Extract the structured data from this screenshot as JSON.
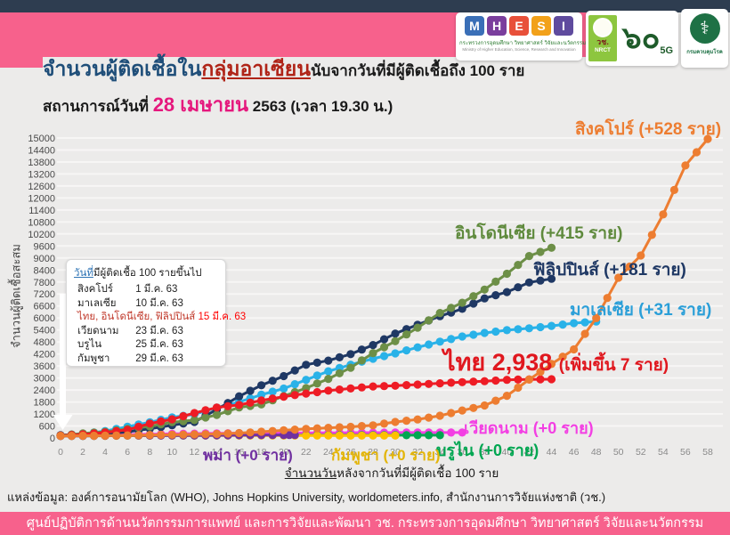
{
  "header": {
    "title_part1": "จำนวนผู้ติดเชื้อใน",
    "title_part2": "กลุ่มอาเซียน",
    "title_part3": "นับจากวันที่มีผู้ติดเชื้อถึง 100 ราย",
    "subtitle_prefix": "สถานการณ์วันที่ ",
    "subtitle_date": "28 เมษายน",
    "subtitle_suffix": " 2563  (เวลา 19.30 น.)"
  },
  "logos": {
    "mhesi": {
      "letters": [
        {
          "ch": "M",
          "color": "#3A6FB7"
        },
        {
          "ch": "H",
          "color": "#7A3E9D"
        },
        {
          "ch": "E",
          "color": "#E8503A"
        },
        {
          "ch": "S",
          "color": "#F2A11A"
        },
        {
          "ch": "I",
          "color": "#5F4B9E"
        }
      ],
      "thai": "กระทรวงการอุดมศึกษา วิทยาศาสตร์ วิจัยและนวัตกรรม",
      "eng": "Ministry of Higher Education, Science, Research and Innovation"
    },
    "nrct": {
      "abbr": "วช.",
      "eng": "NRCT",
      "sixty": "๖๐",
      "fiveg": "5G"
    },
    "ddc": {
      "symbol": "⚕",
      "name": "กรมควบคุมโรค"
    }
  },
  "chart_data": {
    "type": "line",
    "title": "จำนวนผู้ติดเชื้อในกลุ่มอาเซียน นับจากวันที่มีผู้ติดเชื้อถึง 100 ราย",
    "xlabel": "จำนวนวันหลังจากวันที่มีผู้ติดเชื้อ 100 ราย",
    "ylabel": "จำนวนผู้ติดเชื้อสะสม",
    "xlim": [
      0,
      58
    ],
    "ylim": [
      0,
      15000
    ],
    "xtick_step": 2,
    "ytick_step": 600,
    "grid": true,
    "legend_position": "inline-labels",
    "series": [
      {
        "name": "เวียดนาม",
        "color": "#F33FE3",
        "points": [
          [
            0,
            113
          ],
          [
            2,
            134
          ],
          [
            4,
            153
          ],
          [
            6,
            174
          ],
          [
            8,
            188
          ],
          [
            10,
            207
          ],
          [
            12,
            218
          ],
          [
            14,
            233
          ],
          [
            16,
            241
          ],
          [
            18,
            245
          ],
          [
            20,
            249
          ],
          [
            22,
            251
          ],
          [
            24,
            255
          ],
          [
            26,
            265
          ],
          [
            28,
            268
          ],
          [
            30,
            270
          ],
          [
            32,
            270
          ],
          [
            34,
            270
          ],
          [
            36,
            270
          ]
        ]
      },
      {
        "name": "บรูไน",
        "color": "#00A651",
        "points": [
          [
            0,
            104
          ],
          [
            2,
            109
          ],
          [
            4,
            115
          ],
          [
            6,
            120
          ],
          [
            8,
            126
          ],
          [
            10,
            129
          ],
          [
            12,
            131
          ],
          [
            14,
            133
          ],
          [
            16,
            135
          ],
          [
            18,
            136
          ],
          [
            20,
            136
          ],
          [
            22,
            137
          ],
          [
            24,
            138
          ],
          [
            26,
            138
          ],
          [
            28,
            138
          ],
          [
            30,
            138
          ],
          [
            32,
            138
          ],
          [
            34,
            138
          ]
        ]
      },
      {
        "name": "กัมพูชา",
        "color": "#FFC000",
        "points": [
          [
            0,
            103
          ],
          [
            2,
            107
          ],
          [
            4,
            109
          ],
          [
            6,
            114
          ],
          [
            8,
            117
          ],
          [
            10,
            119
          ],
          [
            12,
            122
          ],
          [
            14,
            122
          ],
          [
            16,
            122
          ],
          [
            18,
            122
          ],
          [
            20,
            122
          ],
          [
            22,
            122
          ],
          [
            24,
            122
          ],
          [
            26,
            122
          ],
          [
            28,
            122
          ],
          [
            30,
            122
          ]
        ]
      },
      {
        "name": "พม่า",
        "color": "#7030A0",
        "points": [
          [
            0,
            100
          ],
          [
            2,
            104
          ],
          [
            4,
            111
          ],
          [
            6,
            119
          ],
          [
            8,
            121
          ],
          [
            10,
            123
          ],
          [
            12,
            127
          ],
          [
            14,
            132
          ],
          [
            16,
            139
          ],
          [
            18,
            144
          ],
          [
            20,
            146
          ],
          [
            21,
            146
          ]
        ]
      },
      {
        "name": "มาเลเซีย",
        "color": "#29B2E8",
        "points": [
          [
            0,
            129
          ],
          [
            2,
            197
          ],
          [
            4,
            346
          ],
          [
            6,
            566
          ],
          [
            8,
            790
          ],
          [
            10,
            1030
          ],
          [
            12,
            1183
          ],
          [
            14,
            1518
          ],
          [
            16,
            1796
          ],
          [
            18,
            2161
          ],
          [
            20,
            2470
          ],
          [
            22,
            2908
          ],
          [
            24,
            3333
          ],
          [
            26,
            3662
          ],
          [
            28,
            3963
          ],
          [
            30,
            4228
          ],
          [
            32,
            4530
          ],
          [
            34,
            4817
          ],
          [
            36,
            5072
          ],
          [
            38,
            5251
          ],
          [
            40,
            5389
          ],
          [
            42,
            5482
          ],
          [
            44,
            5603
          ],
          [
            46,
            5742
          ],
          [
            48,
            5820
          ]
        ]
      },
      {
        "name": "ฟิลิปปินส์",
        "color": "#1F3864",
        "points": [
          [
            0,
            140
          ],
          [
            2,
            187
          ],
          [
            4,
            217
          ],
          [
            6,
            307
          ],
          [
            8,
            462
          ],
          [
            10,
            636
          ],
          [
            12,
            803
          ],
          [
            14,
            1418
          ],
          [
            16,
            2084
          ],
          [
            18,
            2633
          ],
          [
            20,
            3094
          ],
          [
            22,
            3660
          ],
          [
            24,
            3870
          ],
          [
            26,
            4195
          ],
          [
            28,
            4648
          ],
          [
            30,
            5223
          ],
          [
            32,
            5660
          ],
          [
            34,
            6087
          ],
          [
            36,
            6459
          ],
          [
            38,
            6981
          ],
          [
            40,
            7294
          ],
          [
            42,
            7777
          ],
          [
            44,
            7958
          ]
        ]
      },
      {
        "name": "อินโดนีเซีย",
        "color": "#6D8F47",
        "points": [
          [
            0,
            117
          ],
          [
            2,
            227
          ],
          [
            4,
            309
          ],
          [
            6,
            450
          ],
          [
            8,
            579
          ],
          [
            10,
            790
          ],
          [
            12,
            893
          ],
          [
            14,
            1155
          ],
          [
            16,
            1528
          ],
          [
            18,
            1677
          ],
          [
            20,
            2092
          ],
          [
            22,
            2491
          ],
          [
            24,
            2956
          ],
          [
            26,
            3512
          ],
          [
            28,
            4241
          ],
          [
            30,
            4839
          ],
          [
            32,
            5516
          ],
          [
            34,
            6248
          ],
          [
            36,
            6760
          ],
          [
            38,
            7418
          ],
          [
            40,
            8211
          ],
          [
            42,
            9096
          ],
          [
            44,
            9511
          ]
        ]
      },
      {
        "name": "ไทย",
        "color": "#EE1C25",
        "points": [
          [
            0,
            114
          ],
          [
            2,
            177
          ],
          [
            4,
            272
          ],
          [
            6,
            411
          ],
          [
            8,
            721
          ],
          [
            10,
            934
          ],
          [
            12,
            1245
          ],
          [
            14,
            1524
          ],
          [
            16,
            1651
          ],
          [
            18,
            1875
          ],
          [
            20,
            2067
          ],
          [
            22,
            2220
          ],
          [
            24,
            2369
          ],
          [
            26,
            2473
          ],
          [
            28,
            2579
          ],
          [
            30,
            2613
          ],
          [
            32,
            2672
          ],
          [
            34,
            2733
          ],
          [
            36,
            2792
          ],
          [
            38,
            2839
          ],
          [
            40,
            2907
          ],
          [
            42,
            2931
          ],
          [
            44,
            2938
          ]
        ]
      },
      {
        "name": "สิงคโปร์",
        "color": "#ED7D31",
        "points": [
          [
            0,
            106
          ],
          [
            2,
            110
          ],
          [
            4,
            117
          ],
          [
            6,
            130
          ],
          [
            8,
            150
          ],
          [
            10,
            160
          ],
          [
            12,
            178
          ],
          [
            14,
            200
          ],
          [
            16,
            243
          ],
          [
            18,
            313
          ],
          [
            20,
            385
          ],
          [
            22,
            455
          ],
          [
            24,
            509
          ],
          [
            26,
            558
          ],
          [
            28,
            631
          ],
          [
            30,
            802
          ],
          [
            32,
            926
          ],
          [
            34,
            1114
          ],
          [
            36,
            1375
          ],
          [
            38,
            1623
          ],
          [
            40,
            2108
          ],
          [
            42,
            2918
          ],
          [
            44,
            3699
          ],
          [
            46,
            4427
          ],
          [
            48,
            5992
          ],
          [
            50,
            8014
          ],
          [
            52,
            9125
          ],
          [
            54,
            11178
          ],
          [
            56,
            13624
          ],
          [
            58,
            14951
          ]
        ]
      }
    ]
  },
  "series_labels": {
    "singapore": {
      "text": "สิงคโปร์ (+528 ราย)",
      "color": "#ED7D31"
    },
    "indonesia": {
      "text": "อินโดนีเซีย (+415 ราย)",
      "color": "#5F8A3D"
    },
    "philippines": {
      "text": "ฟิลิปปินส์ (+181 ราย)",
      "color": "#1F3864"
    },
    "malaysia": {
      "text": "มาเลเซีย (+31 ราย)",
      "color": "#2B9FD8"
    },
    "thailand_main": {
      "text": "ไทย 2,938 ",
      "color": "#E0181F"
    },
    "thailand_sub": {
      "text": "(เพิ่มขึ้น 7 ราย)",
      "color": "#E0181F"
    },
    "vietnam": {
      "text": "เวียดนาม (+0 ราย)",
      "color": "#F33FE3"
    },
    "brunei": {
      "text": "บรูไน (+0 ราย)",
      "color": "#00A651"
    },
    "cambodia": {
      "text": "กัมพูชา (+0 ราย)",
      "color": "#E3B50A"
    },
    "myanmar": {
      "text": "พม่า (+0 ราย)",
      "color": "#7030A0"
    }
  },
  "legend_box": {
    "title_underlined": "วันที่",
    "title_rest": "มีผู้ติดเชื้อ 100 รายขึ้นไป",
    "rows": [
      {
        "name": "สิงคโปร์",
        "date": "1 มี.ค. 63"
      },
      {
        "name": "มาเลเซีย",
        "date": "10 มี.ค. 63"
      },
      {
        "name": "ไทย, อินโดนีเซีย, ฟิลิปปินส์",
        "date": "15 มี.ค. 63"
      },
      {
        "name": "เวียดนาม",
        "date": "23 มี.ค. 63"
      },
      {
        "name": "บรูไน",
        "date": "25 มี.ค. 63"
      },
      {
        "name": "กัมพูชา",
        "date": "29 มี.ค. 63"
      }
    ]
  },
  "source": "แหล่งข้อมูล: องค์การอนามัยโลก (WHO), Johns Hopkins University, worldometers.info, สำนักงานการวิจัยแห่งชาติ (วช.)",
  "footer": "ศูนย์ปฏิบัติการด้านนวัตกรรมการแพทย์ และการวิจัยและพัฒนา  วช.   กระทรวงการอุดมศึกษา วิทยาศาสตร์ วิจัยและนวัตกรรม",
  "colors": {
    "top_bar": "#2E3D50",
    "pink_band": "#F7618C",
    "background": "#ECEBEA",
    "gridline": "#F7F6F5"
  }
}
